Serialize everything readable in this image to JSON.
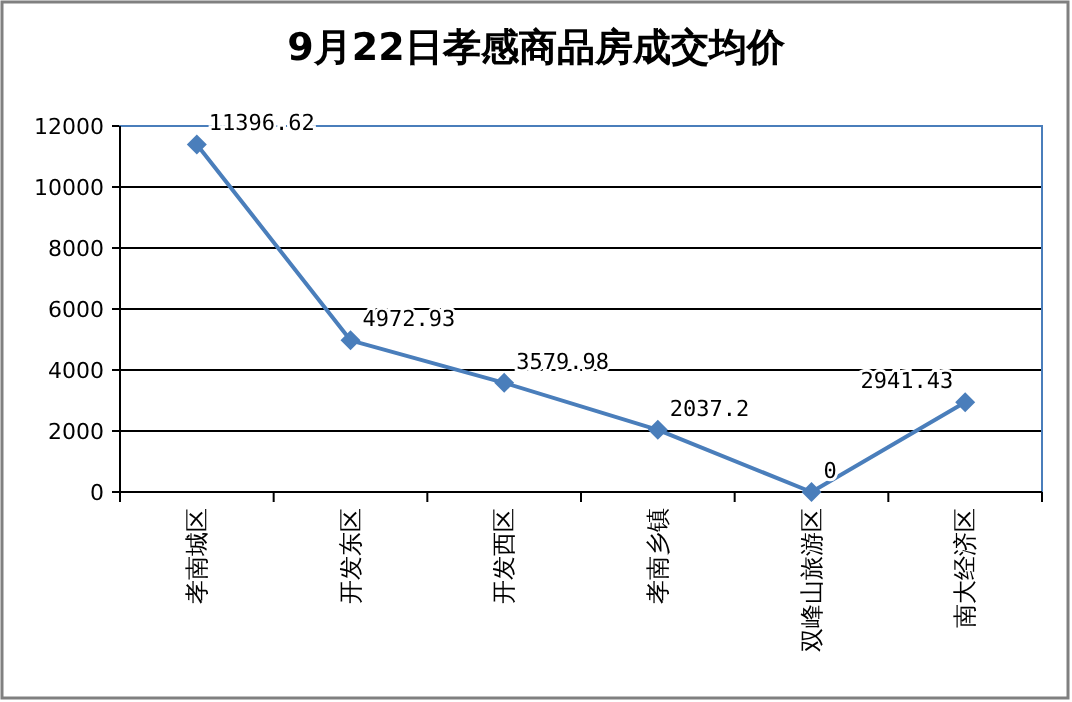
{
  "chart_data": {
    "type": "line",
    "title": "9月22日孝感商品房成交均价",
    "categories": [
      "孝南城区",
      "开发东区",
      "开发西区",
      "孝南乡镇",
      "双峰山旅游区",
      "南大经济区"
    ],
    "series": [
      {
        "color": "#4a7ebb",
        "values": [
          11396.62,
          4972.93,
          3579.98,
          2037.2,
          0,
          2941.43
        ]
      }
    ],
    "ylim": [
      0,
      12000
    ],
    "yticks": [
      0,
      2000,
      4000,
      6000,
      8000,
      10000,
      12000
    ],
    "grid": "y",
    "marker": "diamond",
    "line_style": "solid",
    "data_labels": true
  }
}
